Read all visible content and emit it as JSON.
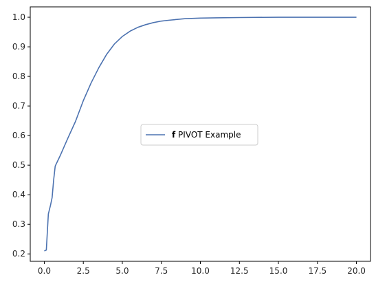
{
  "chart_data": {
    "type": "line",
    "title": "",
    "xlabel": "",
    "ylabel": "",
    "xlim": [
      -0.9,
      20.9
    ],
    "ylim": [
      0.175,
      1.035
    ],
    "xticks": [
      0.0,
      2.5,
      5.0,
      7.5,
      10.0,
      12.5,
      15.0,
      17.5,
      20.0
    ],
    "xtick_labels": [
      "0.0",
      "2.5",
      "5.0",
      "7.5",
      "10.0",
      "12.5",
      "15.0",
      "17.5",
      "20.0"
    ],
    "yticks": [
      0.2,
      0.3,
      0.4,
      0.5,
      0.6,
      0.7,
      0.8,
      0.9,
      1.0
    ],
    "ytick_labels": [
      "0.2",
      "0.3",
      "0.4",
      "0.5",
      "0.6",
      "0.7",
      "0.8",
      "0.9",
      "1.0"
    ],
    "grid": false,
    "legend_position": "center",
    "series": [
      {
        "name_bold": "f",
        "name_rest": " PIVOT Example",
        "color": "#4c72b0",
        "x": [
          0.0,
          0.13,
          0.26,
          0.4,
          0.5,
          0.6,
          0.7,
          1.0,
          1.5,
          2.0,
          2.5,
          3.0,
          3.5,
          4.0,
          4.5,
          5.0,
          5.5,
          6.0,
          6.5,
          7.0,
          7.5,
          8.0,
          9.0,
          10.0,
          11.0,
          12.5,
          15.0,
          17.5,
          20.0
        ],
        "y": [
          0.21,
          0.213,
          0.335,
          0.365,
          0.39,
          0.45,
          0.497,
          0.53,
          0.59,
          0.648,
          0.718,
          0.778,
          0.83,
          0.875,
          0.91,
          0.935,
          0.953,
          0.966,
          0.975,
          0.982,
          0.987,
          0.99,
          0.995,
          0.997,
          0.998,
          0.999,
          1.0,
          1.0,
          1.0
        ]
      }
    ]
  }
}
